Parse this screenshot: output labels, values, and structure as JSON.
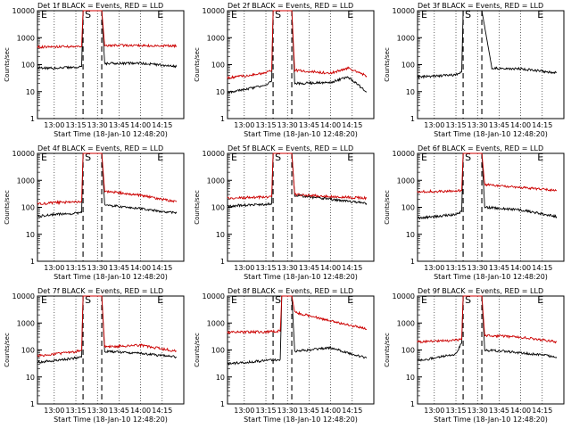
{
  "figure": {
    "x_ticks": [
      "13:00",
      "13:15",
      "13:30",
      "13:45",
      "14:00",
      "14:15"
    ],
    "y_tick_labels": [
      "1",
      "10",
      "100",
      "1000",
      "10000"
    ],
    "ylabel": "Counts/sec",
    "xlabel": "Start Time (18-Jan-10 12:48:20)",
    "marker_labels": [
      "E",
      "S",
      "E"
    ],
    "colors": {
      "events": "#000000",
      "lld": "#cc0000",
      "markers": "#000000"
    },
    "scale": "log"
  },
  "chart_data": [
    {
      "type": "line",
      "title": "Det 1f BLACK = Events, RED = LLD",
      "xlabel": "Start Time (18-Jan-10 12:48:20)",
      "ylabel": "Counts/sec",
      "x_time_range": [
        "12:48:20",
        "14:30"
      ],
      "ylim": [
        1,
        10000
      ],
      "y_scale": "log",
      "grid": "vertical dotted",
      "series": [
        {
          "name": "Events",
          "color": "#000000",
          "time": [
            "12:48",
            "13:00",
            "13:15",
            "13:19",
            "13:20",
            "13:33",
            "13:35",
            "14:00",
            "14:25"
          ],
          "values": [
            75,
            75,
            78,
            85,
            10000,
            10000,
            110,
            115,
            85
          ]
        },
        {
          "name": "LLD",
          "color": "#cc0000",
          "time": [
            "12:48",
            "13:00",
            "13:15",
            "13:19",
            "13:20",
            "13:33",
            "13:35",
            "14:00",
            "14:25"
          ],
          "values": [
            450,
            460,
            470,
            480,
            10000,
            10000,
            520,
            510,
            490
          ]
        }
      ]
    },
    {
      "type": "line",
      "title": "Det 2f BLACK = Events, RED = LLD",
      "xlabel": "Start Time (18-Jan-10 12:48:20)",
      "ylabel": "Counts/sec",
      "x_time_range": [
        "12:48:20",
        "14:30"
      ],
      "ylim": [
        1,
        10000
      ],
      "y_scale": "log",
      "grid": "vertical dotted",
      "series": [
        {
          "name": "Events",
          "color": "#000000",
          "time": [
            "12:48",
            "13:00",
            "13:15",
            "13:19",
            "13:20",
            "13:33",
            "13:35",
            "14:00",
            "14:12",
            "14:25"
          ],
          "values": [
            9,
            12,
            17,
            25,
            10000,
            10000,
            20,
            22,
            35,
            10
          ]
        },
        {
          "name": "LLD",
          "color": "#cc0000",
          "time": [
            "12:48",
            "13:00",
            "13:15",
            "13:19",
            "13:20",
            "13:33",
            "13:35",
            "14:00",
            "14:12",
            "14:25"
          ],
          "values": [
            32,
            38,
            50,
            60,
            10000,
            10000,
            62,
            48,
            75,
            38
          ]
        }
      ]
    },
    {
      "type": "line",
      "title": "Det 3f BLACK = Events, RED = LLD",
      "xlabel": "Start Time (18-Jan-10 12:48:20)",
      "ylabel": "Counts/sec",
      "x_time_range": [
        "12:48:20",
        "14:30"
      ],
      "ylim": [
        1,
        10000
      ],
      "y_scale": "log",
      "grid": "vertical dotted",
      "series": [
        {
          "name": "Events",
          "color": "#000000",
          "time": [
            "12:48",
            "13:00",
            "13:15",
            "13:19",
            "13:20",
            "13:33",
            "13:40",
            "14:00",
            "14:25"
          ],
          "values": [
            35,
            38,
            42,
            55,
            10000,
            10000,
            75,
            70,
            50
          ]
        }
      ]
    },
    {
      "type": "line",
      "title": "Det 4f BLACK = Events, RED = LLD",
      "xlabel": "Start Time (18-Jan-10 12:48:20)",
      "ylabel": "Counts/sec",
      "x_time_range": [
        "12:48:20",
        "14:30"
      ],
      "ylim": [
        1,
        10000
      ],
      "y_scale": "log",
      "grid": "vertical dotted",
      "series": [
        {
          "name": "Events",
          "color": "#000000",
          "time": [
            "12:48",
            "13:00",
            "13:15",
            "13:19",
            "13:20",
            "13:33",
            "13:35",
            "14:00",
            "14:25"
          ],
          "values": [
            45,
            55,
            60,
            65,
            10000,
            10000,
            120,
            90,
            60
          ]
        },
        {
          "name": "LLD",
          "color": "#cc0000",
          "time": [
            "12:48",
            "13:00",
            "13:15",
            "13:19",
            "13:20",
            "13:33",
            "13:35",
            "14:00",
            "14:25"
          ],
          "values": [
            130,
            150,
            160,
            170,
            10000,
            10000,
            400,
            280,
            160
          ]
        }
      ]
    },
    {
      "type": "line",
      "title": "Det 5f BLACK = Events, RED = LLD",
      "xlabel": "Start Time (18-Jan-10 12:48:20)",
      "ylabel": "Counts/sec",
      "x_time_range": [
        "12:48:20",
        "14:30"
      ],
      "ylim": [
        1,
        10000
      ],
      "y_scale": "log",
      "grid": "vertical dotted",
      "series": [
        {
          "name": "Events",
          "color": "#000000",
          "time": [
            "12:48",
            "13:00",
            "13:15",
            "13:19",
            "13:20",
            "13:33",
            "13:35",
            "14:00",
            "14:25"
          ],
          "values": [
            110,
            120,
            130,
            140,
            10000,
            10000,
            280,
            200,
            140
          ]
        },
        {
          "name": "LLD",
          "color": "#cc0000",
          "time": [
            "12:48",
            "13:00",
            "13:15",
            "13:19",
            "13:20",
            "13:33",
            "13:35",
            "14:00",
            "14:25"
          ],
          "values": [
            220,
            230,
            240,
            250,
            10000,
            10000,
            300,
            250,
            220
          ]
        }
      ]
    },
    {
      "type": "line",
      "title": "Det 6f BLACK = Events, RED = LLD",
      "xlabel": "Start Time (18-Jan-10 12:48:20)",
      "ylabel": "Counts/sec",
      "x_time_range": [
        "12:48:20",
        "14:30"
      ],
      "ylim": [
        1,
        10000
      ],
      "y_scale": "log",
      "grid": "vertical dotted",
      "series": [
        {
          "name": "Events",
          "color": "#000000",
          "time": [
            "12:48",
            "13:00",
            "13:15",
            "13:19",
            "13:20",
            "13:33",
            "13:35",
            "14:00",
            "14:25"
          ],
          "values": [
            40,
            45,
            55,
            70,
            10000,
            10000,
            100,
            80,
            45
          ]
        },
        {
          "name": "LLD",
          "color": "#cc0000",
          "time": [
            "12:48",
            "13:00",
            "13:15",
            "13:19",
            "13:20",
            "13:33",
            "13:35",
            "14:00",
            "14:25"
          ],
          "values": [
            380,
            390,
            400,
            420,
            10000,
            10000,
            700,
            550,
            420
          ]
        }
      ]
    },
    {
      "type": "line",
      "title": "Det 7f BLACK = Events, RED = LLD",
      "xlabel": "Start Time (18-Jan-10 12:48:20)",
      "ylabel": "Counts/sec",
      "x_time_range": [
        "12:48:20",
        "14:30"
      ],
      "ylim": [
        1,
        10000
      ],
      "y_scale": "log",
      "grid": "vertical dotted",
      "series": [
        {
          "name": "Events",
          "color": "#000000",
          "time": [
            "12:48",
            "13:00",
            "13:15",
            "13:19",
            "13:20",
            "13:33",
            "13:35",
            "14:00",
            "14:25"
          ],
          "values": [
            35,
            40,
            50,
            55,
            10000,
            10000,
            90,
            75,
            55
          ]
        },
        {
          "name": "LLD",
          "color": "#cc0000",
          "time": [
            "12:48",
            "13:00",
            "13:15",
            "13:19",
            "13:20",
            "13:33",
            "13:35",
            "14:00",
            "14:25"
          ],
          "values": [
            60,
            70,
            85,
            100,
            10000,
            10000,
            130,
            150,
            90
          ]
        }
      ]
    },
    {
      "type": "line",
      "title": "Det 8f BLACK = Events, RED = LLD",
      "xlabel": "Start Time (18-Jan-10 12:48:20)",
      "ylabel": "Counts/sec",
      "x_time_range": [
        "12:48:20",
        "14:30"
      ],
      "ylim": [
        1,
        10000
      ],
      "y_scale": "log",
      "grid": "vertical dotted",
      "series": [
        {
          "name": "Events",
          "color": "#000000",
          "time": [
            "12:48",
            "13:00",
            "13:15",
            "13:25",
            "13:26",
            "13:33",
            "13:35",
            "14:00",
            "14:25"
          ],
          "values": [
            30,
            35,
            40,
            45,
            10000,
            10000,
            90,
            120,
            50
          ]
        },
        {
          "name": "LLD",
          "color": "#cc0000",
          "time": [
            "12:48",
            "13:00",
            "13:15",
            "13:25",
            "13:26",
            "13:33",
            "13:35",
            "14:00",
            "14:25"
          ],
          "values": [
            450,
            460,
            470,
            500,
            10000,
            10000,
            2500,
            1200,
            600
          ]
        }
      ]
    },
    {
      "type": "line",
      "title": "Det 9f BLACK = Events, RED = LLD",
      "xlabel": "Start Time (18-Jan-10 12:48:20)",
      "ylabel": "Counts/sec",
      "x_time_range": [
        "12:48:20",
        "14:30"
      ],
      "ylim": [
        1,
        10000
      ],
      "y_scale": "log",
      "grid": "vertical dotted",
      "series": [
        {
          "name": "Events",
          "color": "#000000",
          "time": [
            "12:48",
            "13:00",
            "13:15",
            "13:19",
            "13:20",
            "13:33",
            "13:35",
            "14:00",
            "14:25"
          ],
          "values": [
            40,
            50,
            70,
            180,
            10000,
            10000,
            100,
            80,
            55
          ]
        },
        {
          "name": "LLD",
          "color": "#cc0000",
          "time": [
            "12:48",
            "13:00",
            "13:15",
            "13:19",
            "13:20",
            "13:33",
            "13:35",
            "14:00",
            "14:25"
          ],
          "values": [
            200,
            210,
            230,
            250,
            10000,
            10000,
            350,
            300,
            200
          ]
        }
      ]
    }
  ]
}
